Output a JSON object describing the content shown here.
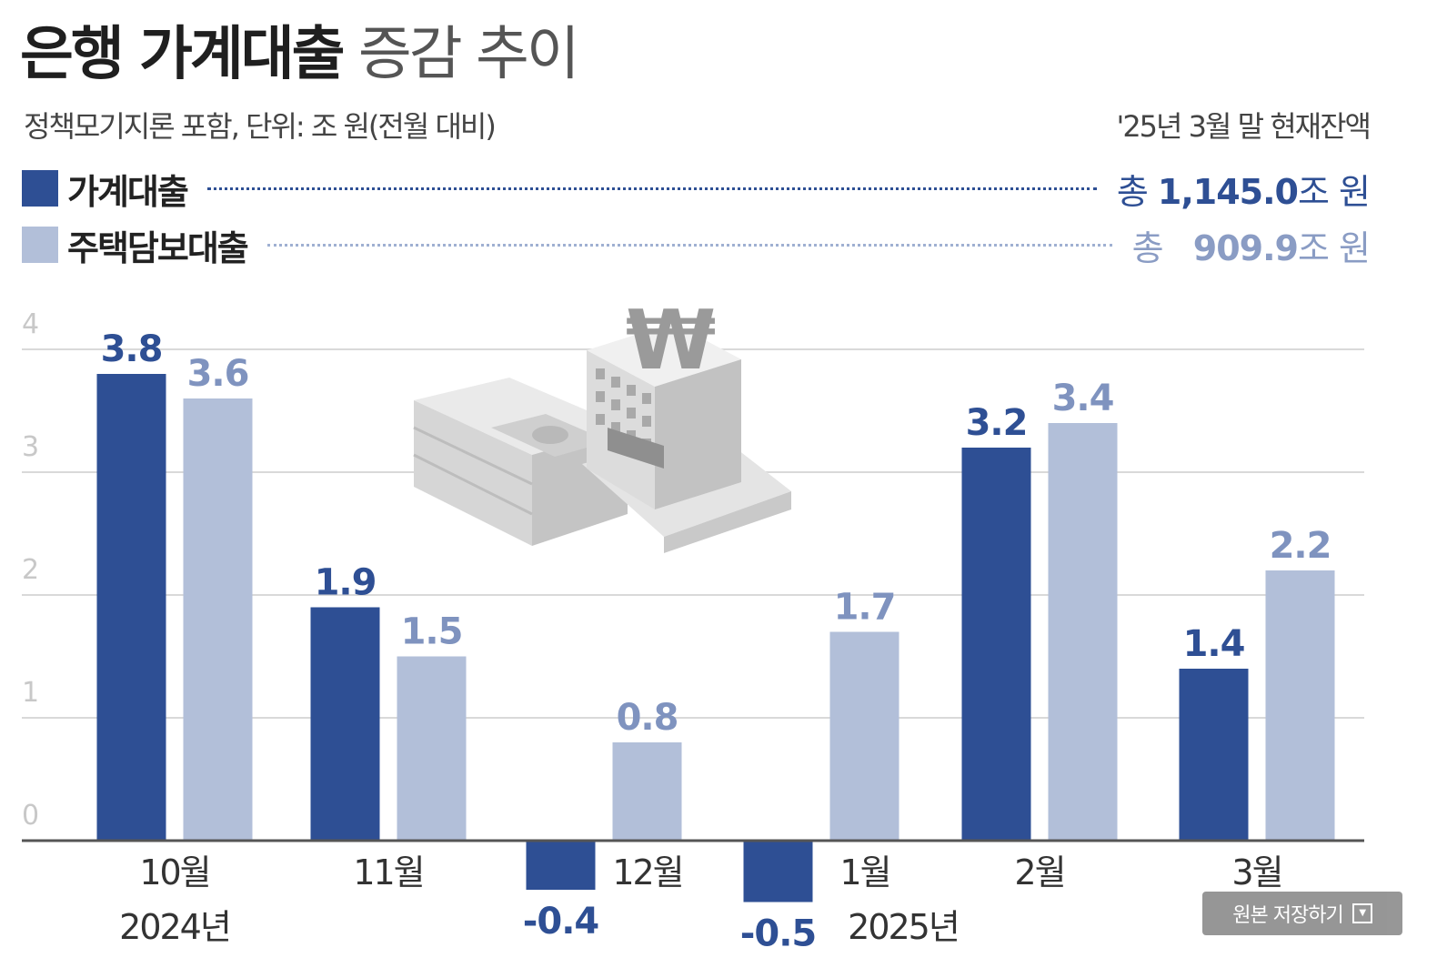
{
  "title": {
    "bold": "은행 가계대출",
    "light": "증감 추이"
  },
  "subtitle": "정책모기지론 포함, 단위: 조 원(전월 대비)",
  "note": "'25년 3월 말 현재잔액",
  "legend": [
    {
      "name": "가계대출",
      "total_prefix": "총",
      "total_value": "1,145.0",
      "total_unit": "조 원",
      "color": "#2e4f94"
    },
    {
      "name": "주택담보대출",
      "total_prefix": "총",
      "total_value": "909.9",
      "total_unit": "조 원",
      "color": "#b2bfd9"
    }
  ],
  "chart_data": {
    "type": "bar",
    "categories": [
      "10월",
      "11월",
      "12월",
      "1월",
      "2월",
      "3월"
    ],
    "year_labels": [
      {
        "label": "2024년",
        "at_category": 0
      },
      {
        "label": "2025년",
        "at_category": 3
      }
    ],
    "series": [
      {
        "name": "가계대출",
        "values": [
          3.8,
          1.9,
          -0.4,
          -0.5,
          3.2,
          1.4
        ],
        "color": "#2e4f94"
      },
      {
        "name": "주택담보대출",
        "values": [
          3.6,
          1.5,
          0.8,
          1.7,
          3.4,
          2.2
        ],
        "color": "#b2bfd9"
      }
    ],
    "yticks": [
      0,
      1,
      2,
      3,
      4
    ],
    "ylim": [
      -0.5,
      4
    ],
    "grid": true,
    "xlabel": "",
    "ylabel": ""
  },
  "save_button": {
    "label": "원본 저장하기"
  }
}
